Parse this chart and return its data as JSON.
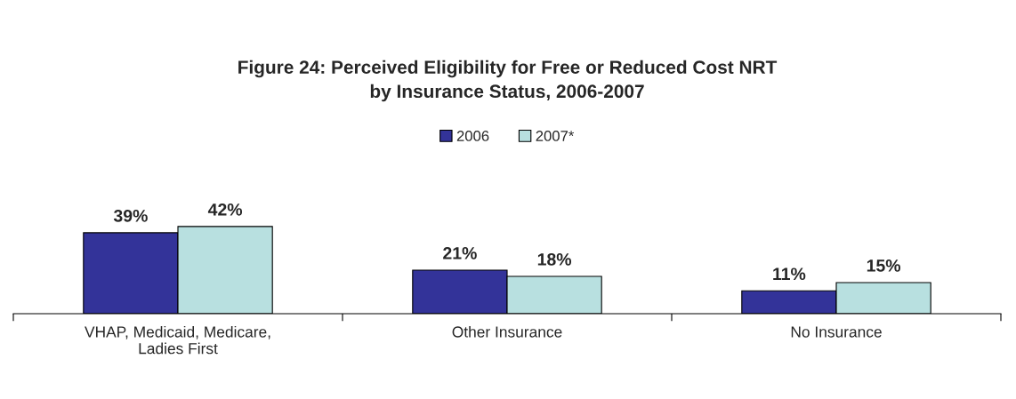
{
  "chart_data": {
    "type": "bar",
    "title": "Figure 24: Perceived Eligibility for Free or Reduced Cost NRT\nby Insurance Status, 2006-2007",
    "categories": [
      "VHAP, Medicaid, Medicare,\nLadies First",
      "Other Insurance",
      "No Insurance"
    ],
    "series": [
      {
        "name": "2006",
        "color": "#333399",
        "values": [
          39,
          21,
          11
        ],
        "value_labels": [
          "39%",
          "21%",
          "11%"
        ]
      },
      {
        "name": "2007*",
        "color": "#b8e0e0",
        "values": [
          42,
          18,
          15
        ],
        "value_labels": [
          "42%",
          "18%",
          "15%"
        ]
      }
    ],
    "data_labels": true,
    "legend": "top",
    "grid": false
  }
}
